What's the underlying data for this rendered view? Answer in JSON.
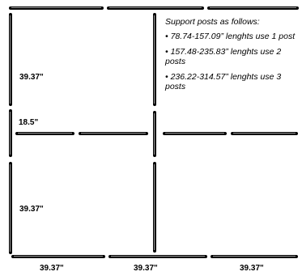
{
  "dimensions": {
    "left_top": "39.37\"",
    "left_middle": "18.5\"",
    "left_bottom": "39.37\"",
    "bottom_1": "39.37\"",
    "bottom_2": "39.37\"",
    "bottom_3": "39.37\""
  },
  "support_notes": {
    "heading": "Support posts as follows:",
    "rules": [
      "• 78.74-157.09” lenghts use 1 post",
      "• 157.48-235.83” lenghts use 2 posts",
      "• 236.22-314.57” lenghts use 3 posts"
    ]
  },
  "colors": {
    "rail": "#000000",
    "rail_highlight": "#9a9a9a",
    "background": "#ffffff"
  }
}
